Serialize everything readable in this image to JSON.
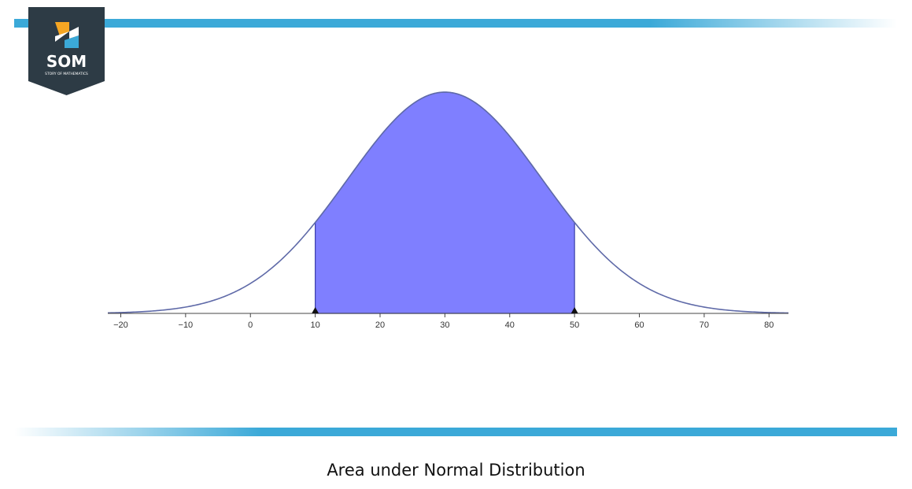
{
  "logo": {
    "brand": "SOM",
    "tagline": "STORY OF MATHEMATICS",
    "colors": {
      "badge": "#2d3b45",
      "orange": "#f5a623",
      "blue": "#3ba9d8"
    }
  },
  "caption": "Area under Normal Distribution",
  "colors": {
    "stripe": "#3ba9d8",
    "curve": "#5f6aa8",
    "fill": "#7f7fff",
    "fill_edge": "#3a3fa8"
  },
  "chart_data": {
    "type": "area",
    "title": "",
    "xlabel": "",
    "ylabel": "",
    "distribution": "normal",
    "mean": 30,
    "std_dev": 15,
    "shaded_interval": [
      10,
      50
    ],
    "markers": [
      10,
      50
    ],
    "xlim": [
      -22,
      83
    ],
    "x_ticks": [
      -20,
      -10,
      0,
      10,
      20,
      30,
      40,
      50,
      60,
      70,
      80
    ],
    "x_tick_labels": [
      "−20",
      "−10",
      "0",
      "10",
      "20",
      "30",
      "40",
      "50",
      "60",
      "70",
      "80"
    ],
    "grid": false,
    "legend": "none"
  }
}
